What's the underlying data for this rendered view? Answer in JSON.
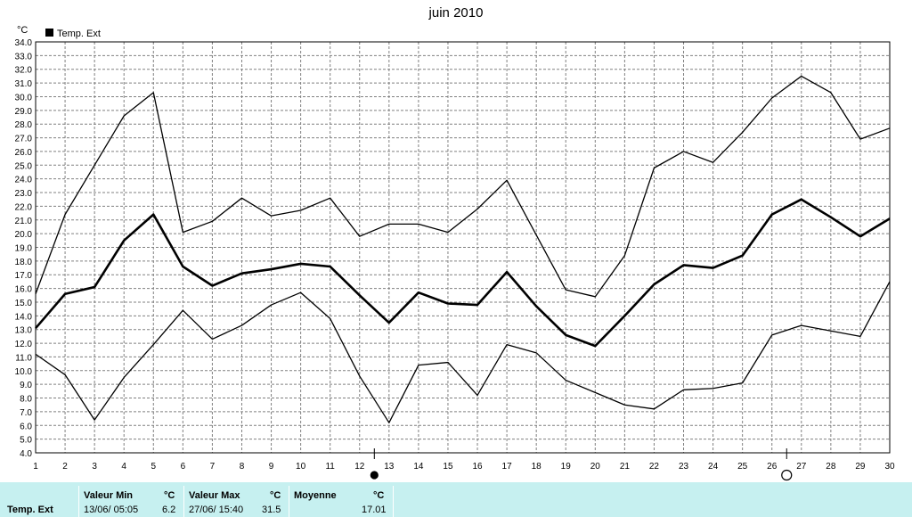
{
  "chart_data": {
    "type": "line",
    "title": "juin 2010",
    "ylabel": "°C",
    "ylim": [
      4.0,
      34.0
    ],
    "y_step": 1.0,
    "x": [
      1,
      2,
      3,
      4,
      5,
      6,
      7,
      8,
      9,
      10,
      11,
      12,
      13,
      14,
      15,
      16,
      17,
      18,
      19,
      20,
      21,
      22,
      23,
      24,
      25,
      26,
      27,
      28,
      29,
      30
    ],
    "grid": true,
    "legend": "top-left",
    "legend_label": "Temp. Ext",
    "series": [
      {
        "role": "max",
        "style": "thin",
        "values": [
          15.6,
          21.4,
          25.0,
          28.6,
          30.3,
          20.1,
          20.9,
          22.6,
          21.3,
          21.7,
          22.6,
          19.8,
          20.7,
          20.7,
          20.1,
          21.8,
          23.9,
          19.9,
          15.9,
          15.4,
          18.4,
          24.8,
          26.0,
          25.2,
          27.4,
          29.9,
          31.5,
          30.3,
          26.9,
          27.7
        ]
      },
      {
        "role": "mean",
        "style": "bold",
        "values": [
          13.1,
          15.6,
          16.1,
          19.5,
          21.4,
          17.6,
          16.2,
          17.1,
          17.4,
          17.8,
          17.6,
          15.5,
          13.5,
          15.7,
          14.9,
          14.8,
          17.2,
          14.7,
          12.6,
          11.8,
          14.0,
          16.3,
          17.7,
          17.5,
          18.4,
          21.4,
          22.5,
          21.2,
          19.8,
          21.1
        ]
      },
      {
        "role": "min",
        "style": "thin",
        "values": [
          11.2,
          9.7,
          6.4,
          9.5,
          11.9,
          14.4,
          12.3,
          13.3,
          14.8,
          15.7,
          13.8,
          9.6,
          6.2,
          10.4,
          10.6,
          8.2,
          11.9,
          11.3,
          9.3,
          8.4,
          7.5,
          7.2,
          8.6,
          8.7,
          9.1,
          12.6,
          13.3,
          12.9,
          12.5,
          16.5
        ]
      }
    ],
    "markers": [
      {
        "symbol": "filled-circle",
        "x": 12.5
      },
      {
        "symbol": "open-circle",
        "x": 26.5
      }
    ]
  },
  "stats": {
    "row_label": "Temp. Ext",
    "min": {
      "header": "Valeur Min",
      "unit": "°C",
      "datetime": "13/06/  05:05",
      "value": "6.2"
    },
    "max": {
      "header": "Valeur Max",
      "unit": "°C",
      "datetime": "27/06/  15:40",
      "value": "31.5"
    },
    "avg": {
      "header": "Moyenne",
      "unit": "°C",
      "value": "17.01"
    }
  },
  "colors": {
    "panel": "#c6f0f0",
    "line": "#000000",
    "grid": "#808080"
  }
}
